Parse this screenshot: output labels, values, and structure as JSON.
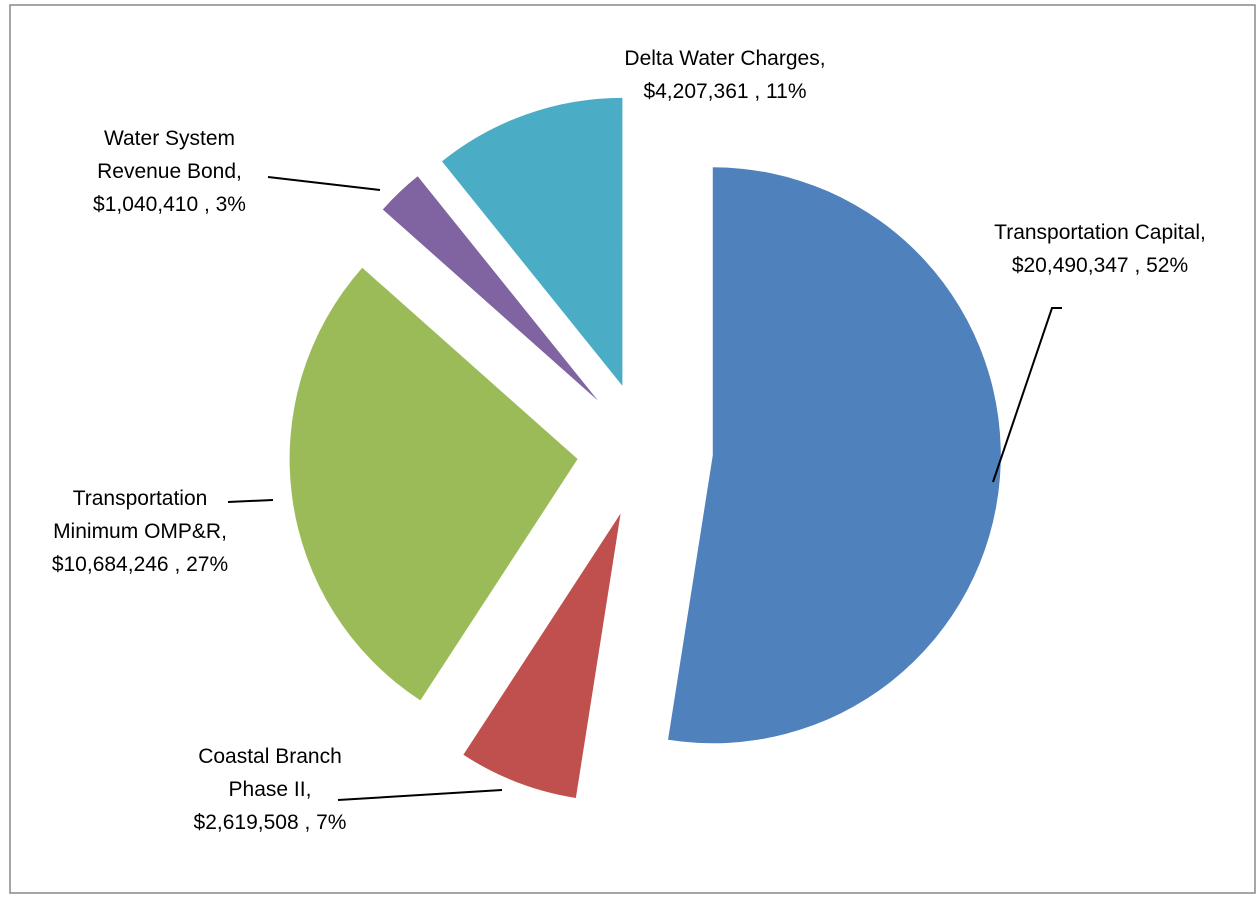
{
  "chart_data": {
    "type": "pie",
    "categories": [
      "Transportation Capital",
      "Coastal Branch Phase II",
      "Transportation Minimum OMP&R",
      "Water System Revenue Bond",
      "Delta Water Charges"
    ],
    "values": [
      20490347,
      2619508,
      10684246,
      1040410,
      4207361
    ],
    "value_labels": [
      ", $20,490,347 , 52%",
      ", $2,619,508 , 7%",
      ", $10,684,246 , 27%",
      ", $1,040,410 , 3%",
      ", $4,207,361 , 11%"
    ],
    "colors": [
      "#4f81bd",
      "#c0504d",
      "#9bbb59",
      "#8064a2",
      "#4bacc6"
    ]
  }
}
